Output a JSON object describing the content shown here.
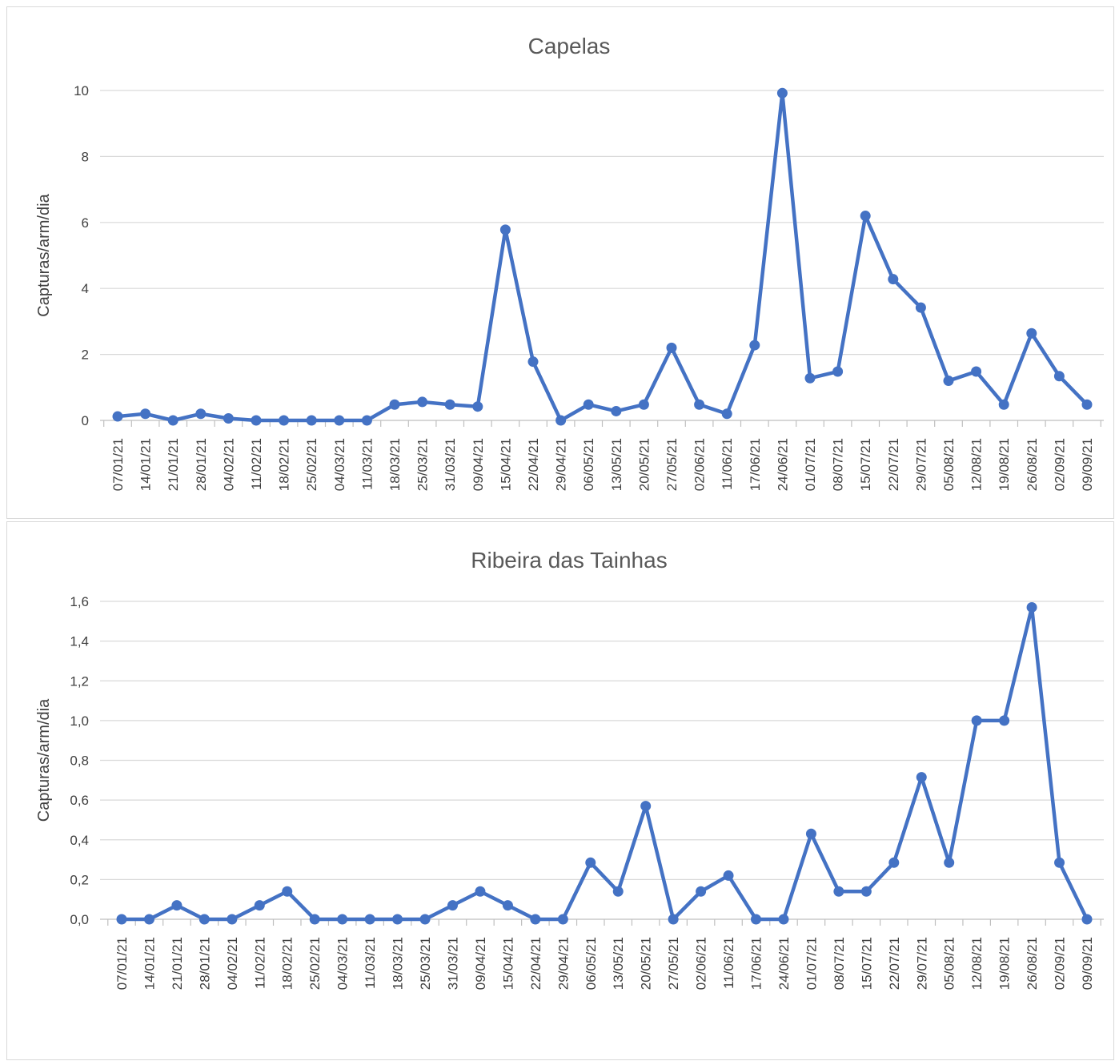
{
  "chart_data": [
    {
      "type": "line",
      "title": "Capelas",
      "xlabel": "",
      "ylabel": "Capturas/arm/dia",
      "ylim": [
        0,
        10
      ],
      "yticks": [
        "0",
        "2",
        "4",
        "6",
        "8",
        "10"
      ],
      "ytick_values": [
        0,
        2,
        4,
        6,
        8,
        10
      ],
      "grid": true,
      "color": "#4472C4",
      "categories": [
        "07/01/21",
        "14/01/21",
        "21/01/21",
        "28/01/21",
        "04/02/21",
        "11/02/21",
        "18/02/21",
        "25/02/21",
        "04/03/21",
        "11/03/21",
        "18/03/21",
        "25/03/21",
        "31/03/21",
        "09/04/21",
        "15/04/21",
        "22/04/21",
        "29/04/21",
        "06/05/21",
        "13/05/21",
        "20/05/21",
        "27/05/21",
        "02/06/21",
        "11/06/21",
        "17/06/21",
        "24/06/21",
        "01/07/21",
        "08/07/21",
        "15/07/21",
        "22/07/21",
        "29/07/21",
        "05/08/21",
        "12/08/21",
        "19/08/21",
        "26/08/21",
        "02/09/21",
        "09/09/21"
      ],
      "values": [
        0.12,
        0.2,
        0.0,
        0.2,
        0.06,
        0.0,
        0.0,
        0.0,
        0.0,
        0.0,
        0.48,
        0.56,
        0.48,
        0.42,
        5.78,
        1.78,
        0.0,
        0.48,
        0.28,
        0.48,
        2.2,
        0.48,
        0.2,
        2.28,
        9.92,
        1.28,
        1.48,
        6.2,
        4.28,
        3.42,
        1.2,
        1.48,
        0.48,
        2.64,
        1.34,
        0.48
      ]
    },
    {
      "type": "line",
      "title": "Ribeira das Tainhas",
      "xlabel": "",
      "ylabel": "Capturas/arm/dia",
      "ylim": [
        0,
        1.6
      ],
      "yticks": [
        "0,0",
        "0,2",
        "0,4",
        "0,6",
        "0,8",
        "1,0",
        "1,2",
        "1,4",
        "1,6"
      ],
      "ytick_values": [
        0,
        0.2,
        0.4,
        0.6,
        0.8,
        1.0,
        1.2,
        1.4,
        1.6
      ],
      "grid": true,
      "color": "#4472C4",
      "categories": [
        "07/01/21",
        "14/01/21",
        "21/01/21",
        "28/01/21",
        "04/02/21",
        "11/02/21",
        "18/02/21",
        "25/02/21",
        "04/03/21",
        "11/03/21",
        "18/03/21",
        "25/03/21",
        "31/03/21",
        "09/04/21",
        "15/04/21",
        "22/04/21",
        "29/04/21",
        "06/05/21",
        "13/05/21",
        "20/05/21",
        "27/05/21",
        "02/06/21",
        "11/06/21",
        "17/06/21",
        "24/06/21",
        "01/07/21",
        "08/07/21",
        "15/07/21",
        "22/07/21",
        "29/07/21",
        "05/08/21",
        "12/08/21",
        "19/08/21",
        "26/08/21",
        "02/09/21",
        "09/09/21"
      ],
      "values": [
        0.0,
        0.0,
        0.07,
        0.0,
        0.0,
        0.07,
        0.14,
        0.0,
        0.0,
        0.0,
        0.0,
        0.0,
        0.07,
        0.14,
        0.07,
        0.0,
        0.0,
        0.285,
        0.14,
        0.57,
        0.0,
        0.14,
        0.22,
        0.0,
        0.0,
        0.43,
        0.14,
        0.14,
        0.285,
        0.715,
        0.285,
        1.0,
        1.0,
        1.57,
        0.285,
        0.0
      ]
    }
  ]
}
